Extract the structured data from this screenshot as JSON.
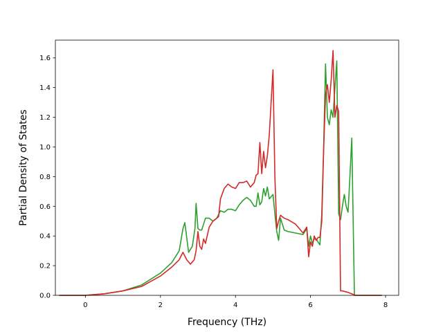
{
  "chart_data": {
    "type": "line",
    "title": "",
    "xlabel": "Frequency (THz)",
    "ylabel": "Partial Density of States",
    "xlim": [
      -0.8,
      8.35
    ],
    "ylim": [
      0.0,
      1.72
    ],
    "xticks": [
      0,
      2,
      4,
      6,
      8
    ],
    "yticks": [
      0.0,
      0.2,
      0.4,
      0.6,
      0.8,
      1.0,
      1.2,
      1.4,
      1.6
    ],
    "xtick_labels": [
      "0",
      "2",
      "4",
      "6",
      "8"
    ],
    "ytick_labels": [
      "0.0",
      "0.2",
      "0.4",
      "0.6",
      "0.8",
      "1.0",
      "1.2",
      "1.4",
      "1.6"
    ],
    "grid": false,
    "legend": "none",
    "series": [
      {
        "color": "#2ca02c",
        "x": [
          -0.7,
          0.0,
          0.5,
          1.0,
          1.5,
          2.0,
          2.3,
          2.5,
          2.6,
          2.65,
          2.75,
          2.85,
          2.92,
          2.95,
          3.0,
          3.05,
          3.1,
          3.2,
          3.3,
          3.4,
          3.5,
          3.6,
          3.7,
          3.8,
          3.9,
          4.0,
          4.1,
          4.2,
          4.3,
          4.4,
          4.5,
          4.55,
          4.6,
          4.65,
          4.7,
          4.75,
          4.8,
          4.85,
          4.9,
          5.0,
          5.05,
          5.1,
          5.15,
          5.2,
          5.3,
          5.4,
          5.6,
          5.8,
          5.9,
          5.95,
          6.0,
          6.05,
          6.1,
          6.15,
          6.2,
          6.25,
          6.3,
          6.35,
          6.4,
          6.45,
          6.5,
          6.55,
          6.6,
          6.65,
          6.7,
          6.75,
          6.8,
          6.85,
          6.9,
          6.95,
          7.0,
          7.05,
          7.1,
          7.15,
          7.17,
          7.2,
          7.9
        ],
        "values": [
          0.0,
          0.0,
          0.01,
          0.03,
          0.07,
          0.15,
          0.22,
          0.3,
          0.45,
          0.49,
          0.29,
          0.33,
          0.45,
          0.62,
          0.45,
          0.44,
          0.44,
          0.52,
          0.52,
          0.5,
          0.52,
          0.57,
          0.56,
          0.58,
          0.58,
          0.57,
          0.61,
          0.64,
          0.66,
          0.64,
          0.6,
          0.6,
          0.69,
          0.61,
          0.63,
          0.72,
          0.67,
          0.73,
          0.65,
          0.68,
          0.55,
          0.43,
          0.37,
          0.52,
          0.44,
          0.43,
          0.42,
          0.41,
          0.45,
          0.33,
          0.4,
          0.35,
          0.38,
          0.38,
          0.36,
          0.34,
          0.55,
          1.0,
          1.56,
          1.2,
          1.15,
          1.25,
          1.2,
          1.4,
          1.58,
          0.55,
          0.51,
          0.6,
          0.68,
          0.6,
          0.56,
          0.8,
          1.06,
          0.3,
          0.0,
          0.0,
          0.0
        ]
      },
      {
        "color": "#d62728",
        "x": [
          -0.7,
          0.0,
          0.5,
          1.0,
          1.5,
          2.0,
          2.3,
          2.5,
          2.6,
          2.7,
          2.8,
          2.9,
          2.95,
          3.0,
          3.05,
          3.1,
          3.15,
          3.2,
          3.3,
          3.4,
          3.5,
          3.55,
          3.6,
          3.7,
          3.8,
          3.9,
          4.0,
          4.1,
          4.2,
          4.3,
          4.4,
          4.5,
          4.55,
          4.6,
          4.65,
          4.7,
          4.75,
          4.8,
          4.85,
          4.9,
          5.0,
          5.05,
          5.1,
          5.15,
          5.2,
          5.3,
          5.4,
          5.6,
          5.8,
          5.9,
          5.95,
          6.0,
          6.05,
          6.1,
          6.15,
          6.2,
          6.25,
          6.3,
          6.35,
          6.4,
          6.45,
          6.5,
          6.55,
          6.6,
          6.65,
          6.7,
          6.75,
          6.8,
          6.85,
          7.0,
          7.2,
          7.9
        ],
        "values": [
          0.0,
          0.0,
          0.01,
          0.03,
          0.06,
          0.13,
          0.19,
          0.24,
          0.29,
          0.24,
          0.21,
          0.24,
          0.3,
          0.43,
          0.33,
          0.31,
          0.38,
          0.35,
          0.46,
          0.5,
          0.52,
          0.53,
          0.65,
          0.72,
          0.75,
          0.73,
          0.72,
          0.76,
          0.76,
          0.77,
          0.73,
          0.76,
          0.81,
          0.82,
          1.03,
          0.82,
          0.97,
          0.86,
          0.94,
          1.08,
          1.52,
          0.8,
          0.45,
          0.5,
          0.54,
          0.52,
          0.51,
          0.48,
          0.42,
          0.46,
          0.26,
          0.36,
          0.33,
          0.4,
          0.37,
          0.39,
          0.39,
          0.5,
          0.98,
          1.35,
          1.42,
          1.3,
          1.45,
          1.65,
          1.2,
          1.28,
          1.24,
          0.03,
          0.03,
          0.02,
          0.0,
          0.0
        ]
      }
    ]
  }
}
